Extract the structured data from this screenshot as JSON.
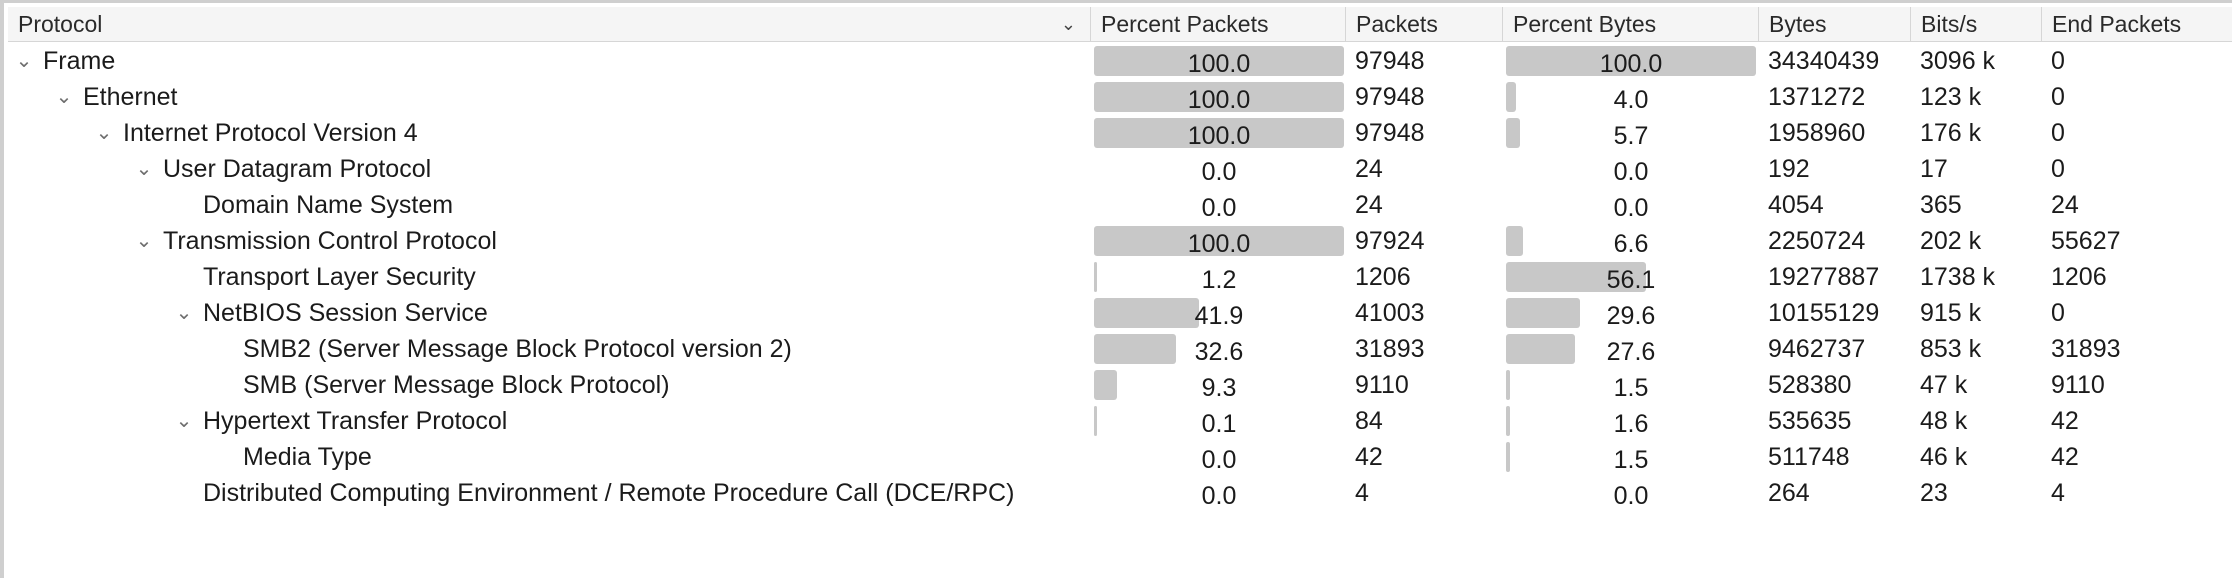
{
  "header": {
    "protocol": "Protocol",
    "percent_packets": "Percent Packets",
    "packets": "Packets",
    "percent_bytes": "Percent Bytes",
    "bytes": "Bytes",
    "bits_per_s": "Bits/s",
    "end_packets": "End Packets"
  },
  "sort_icon": "chevron-down-icon",
  "bar_color": "#c8c8c8",
  "rows": [
    {
      "depth": 0,
      "expanded": true,
      "protocol": "Frame",
      "percent_packets": "100.0",
      "percent_packets_value": 100.0,
      "packets": "97948",
      "percent_bytes": "100.0",
      "percent_bytes_value": 100.0,
      "bytes": "34340439",
      "bits_per_s": "3096 k",
      "end_packets": "0"
    },
    {
      "depth": 1,
      "expanded": true,
      "protocol": "Ethernet",
      "percent_packets": "100.0",
      "percent_packets_value": 100.0,
      "packets": "97948",
      "percent_bytes": "4.0",
      "percent_bytes_value": 4.0,
      "bytes": "1371272",
      "bits_per_s": "123 k",
      "end_packets": "0"
    },
    {
      "depth": 2,
      "expanded": true,
      "protocol": "Internet Protocol Version 4",
      "percent_packets": "100.0",
      "percent_packets_value": 100.0,
      "packets": "97948",
      "percent_bytes": "5.7",
      "percent_bytes_value": 5.7,
      "bytes": "1958960",
      "bits_per_s": "176 k",
      "end_packets": "0"
    },
    {
      "depth": 3,
      "expanded": true,
      "protocol": "User Datagram Protocol",
      "percent_packets": "0.0",
      "percent_packets_value": 0.0,
      "packets": "24",
      "percent_bytes": "0.0",
      "percent_bytes_value": 0.0,
      "bytes": "192",
      "bits_per_s": "17",
      "end_packets": "0"
    },
    {
      "depth": 4,
      "expanded": null,
      "protocol": "Domain Name System",
      "percent_packets": "0.0",
      "percent_packets_value": 0.0,
      "packets": "24",
      "percent_bytes": "0.0",
      "percent_bytes_value": 0.0,
      "bytes": "4054",
      "bits_per_s": "365",
      "end_packets": "24"
    },
    {
      "depth": 3,
      "expanded": true,
      "protocol": "Transmission Control Protocol",
      "percent_packets": "100.0",
      "percent_packets_value": 100.0,
      "packets": "97924",
      "percent_bytes": "6.6",
      "percent_bytes_value": 6.6,
      "bytes": "2250724",
      "bits_per_s": "202 k",
      "end_packets": "55627"
    },
    {
      "depth": 4,
      "expanded": null,
      "protocol": "Transport Layer Security",
      "percent_packets": "1.2",
      "percent_packets_value": 1.2,
      "packets": "1206",
      "percent_bytes": "56.1",
      "percent_bytes_value": 56.1,
      "bytes": "19277887",
      "bits_per_s": "1738 k",
      "end_packets": "1206"
    },
    {
      "depth": 4,
      "expanded": true,
      "protocol": "NetBIOS Session Service",
      "percent_packets": "41.9",
      "percent_packets_value": 41.9,
      "packets": "41003",
      "percent_bytes": "29.6",
      "percent_bytes_value": 29.6,
      "bytes": "10155129",
      "bits_per_s": "915 k",
      "end_packets": "0"
    },
    {
      "depth": 5,
      "expanded": null,
      "protocol": "SMB2 (Server Message Block Protocol version 2)",
      "percent_packets": "32.6",
      "percent_packets_value": 32.6,
      "packets": "31893",
      "percent_bytes": "27.6",
      "percent_bytes_value": 27.6,
      "bytes": "9462737",
      "bits_per_s": "853 k",
      "end_packets": "31893"
    },
    {
      "depth": 5,
      "expanded": null,
      "protocol": "SMB (Server Message Block Protocol)",
      "percent_packets": "9.3",
      "percent_packets_value": 9.3,
      "packets": "9110",
      "percent_bytes": "1.5",
      "percent_bytes_value": 1.5,
      "bytes": "528380",
      "bits_per_s": "47 k",
      "end_packets": "9110"
    },
    {
      "depth": 4,
      "expanded": true,
      "protocol": "Hypertext Transfer Protocol",
      "percent_packets": "0.1",
      "percent_packets_value": 0.1,
      "packets": "84",
      "percent_bytes": "1.6",
      "percent_bytes_value": 1.6,
      "bytes": "535635",
      "bits_per_s": "48 k",
      "end_packets": "42"
    },
    {
      "depth": 5,
      "expanded": null,
      "protocol": "Media Type",
      "percent_packets": "0.0",
      "percent_packets_value": 0.0,
      "packets": "42",
      "percent_bytes": "1.5",
      "percent_bytes_value": 1.5,
      "bytes": "511748",
      "bits_per_s": "46 k",
      "end_packets": "42"
    },
    {
      "depth": 4,
      "expanded": null,
      "protocol": "Distributed Computing Environment / Remote Procedure Call (DCE/RPC)",
      "percent_packets": "0.0",
      "percent_packets_value": 0.0,
      "packets": "4",
      "percent_bytes": "0.0",
      "percent_bytes_value": 0.0,
      "bytes": "264",
      "bits_per_s": "23",
      "end_packets": "4"
    }
  ]
}
